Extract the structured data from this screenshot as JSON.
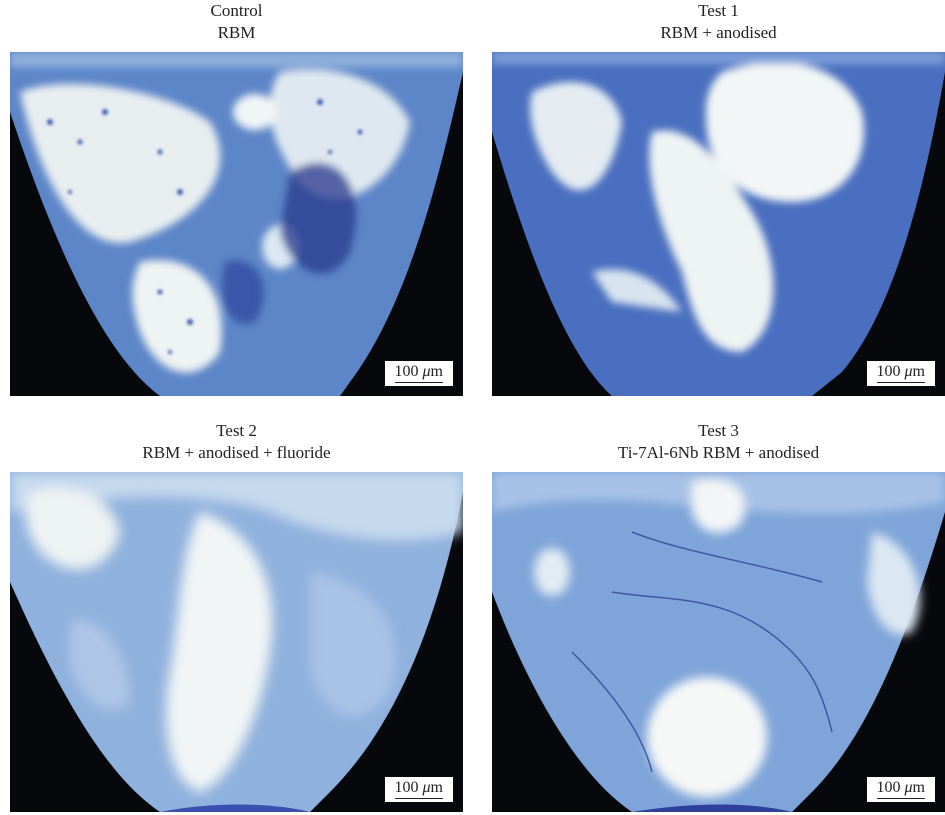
{
  "panels": [
    {
      "title": "Control",
      "subtitle": "RBM",
      "scale_value": "100",
      "scale_unit_symbol": "μ",
      "scale_unit_rest": "m"
    },
    {
      "title": "Test 1",
      "subtitle": "RBM + anodised",
      "scale_value": "100",
      "scale_unit_symbol": "μ",
      "scale_unit_rest": "m"
    },
    {
      "title": "Test 2",
      "subtitle": "RBM + anodised + fluoride",
      "scale_value": "100",
      "scale_unit_symbol": "μ",
      "scale_unit_rest": "m"
    },
    {
      "title": "Test 3",
      "subtitle": "Ti-7Al-6Nb RBM + anodised",
      "scale_value": "100",
      "scale_unit_symbol": "μ",
      "scale_unit_rest": "m"
    }
  ],
  "colors": {
    "background_dark": "#06080c",
    "tissue_blue": "#5d86c8",
    "tissue_light": "#c9dcef",
    "marrow_white": "#f3f6f5",
    "stain_dark": "#2a3f96"
  }
}
